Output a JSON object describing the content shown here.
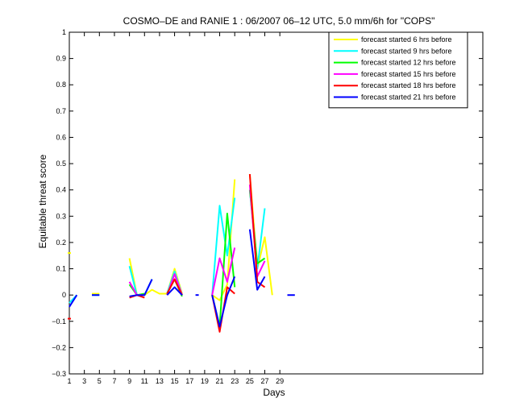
{
  "chart_data": {
    "type": "line",
    "title": "COSMO–DE and RANIE 1 : 06/2007 06–12 UTC, 5.0 mm/6h for \"COPS\"",
    "xlabel": "Days",
    "ylabel": "Equitable threat score",
    "xlim": [
      1,
      56
    ],
    "ylim": [
      -0.3,
      1
    ],
    "xticks": [
      "1",
      "3",
      "5",
      "7",
      "9",
      "11",
      "13",
      "15",
      "17",
      "19",
      "21",
      "23",
      "25",
      "27",
      "29"
    ],
    "yticks": [
      "−0.3",
      "−0.2",
      "−0.1",
      "0",
      "0.1",
      "0.2",
      "0.3",
      "0.4",
      "0.5",
      "0.6",
      "0.7",
      "0.8",
      "0.9",
      "1"
    ],
    "grid": false,
    "legend_position": "top-right",
    "series": [
      {
        "name": "forecast started 6 hrs before",
        "color": "#ffff00",
        "x": [
          1,
          2,
          3,
          4,
          5,
          6,
          7,
          8,
          9,
          10,
          11,
          12,
          13,
          14,
          15,
          16,
          17,
          18,
          19,
          20,
          21,
          22,
          23,
          24,
          25,
          26,
          27,
          28,
          29,
          30,
          31
        ],
        "y": [
          0.16,
          null,
          null,
          0.005,
          0.005,
          null,
          null,
          null,
          0.14,
          0.0,
          0.0,
          0.02,
          0.005,
          0.005,
          0.1,
          0.005,
          null,
          null,
          null,
          0.0,
          -0.02,
          0.04,
          0.44,
          null,
          0.46,
          0.1,
          0.22,
          0.0,
          null,
          null,
          null
        ]
      },
      {
        "name": "forecast started 9 hrs before",
        "color": "#00ffff",
        "x": [
          1,
          2,
          3,
          4,
          5,
          6,
          7,
          8,
          9,
          10,
          11,
          12,
          13,
          14,
          15,
          16,
          17,
          18,
          19,
          20,
          21,
          22,
          23,
          24,
          25,
          26,
          27,
          28,
          29,
          30,
          31
        ],
        "y": [
          -0.03,
          0.0,
          null,
          0.0,
          0.0,
          null,
          null,
          null,
          0.11,
          0.0,
          0.0,
          0.06,
          null,
          0.005,
          0.09,
          0.0,
          null,
          null,
          null,
          0.0,
          0.34,
          0.15,
          0.37,
          null,
          0.4,
          0.1,
          0.33,
          null,
          null,
          null,
          null
        ]
      },
      {
        "name": "forecast started 12 hrs before",
        "color": "#00ff00",
        "x": [
          1,
          2,
          3,
          4,
          5,
          6,
          7,
          8,
          9,
          10,
          11,
          12,
          13,
          14,
          15,
          16,
          17,
          18,
          19,
          20,
          21,
          22,
          23,
          24,
          25,
          26,
          27,
          28,
          29,
          30,
          31
        ],
        "y": [
          null,
          null,
          null,
          null,
          null,
          null,
          null,
          null,
          0.04,
          0.0,
          0.005,
          null,
          null,
          0.005,
          0.06,
          -0.005,
          null,
          null,
          null,
          0.0,
          -0.12,
          0.31,
          0.03,
          null,
          0.4,
          0.12,
          0.14,
          null,
          null,
          null,
          null
        ]
      },
      {
        "name": "forecast started 15 hrs before",
        "color": "#ff00ff",
        "x": [
          1,
          2,
          3,
          4,
          5,
          6,
          7,
          8,
          9,
          10,
          11,
          12,
          13,
          14,
          15,
          16,
          17,
          18,
          19,
          20,
          21,
          22,
          23,
          24,
          25,
          26,
          27,
          28,
          29,
          30,
          31
        ],
        "y": [
          null,
          null,
          null,
          null,
          null,
          null,
          null,
          null,
          0.05,
          0.0,
          0.0,
          null,
          null,
          0.0,
          0.08,
          0.0,
          null,
          null,
          null,
          0.0,
          0.14,
          0.05,
          0.18,
          null,
          0.42,
          0.07,
          0.13,
          null,
          null,
          null,
          null
        ]
      },
      {
        "name": "forecast started 18 hrs before",
        "color": "#ff0000",
        "x": [
          1,
          2,
          3,
          4,
          5,
          6,
          7,
          8,
          9,
          10,
          11,
          12,
          13,
          14,
          15,
          16,
          17,
          18,
          19,
          20,
          21,
          22,
          23,
          24,
          25,
          26,
          27,
          28,
          29,
          30,
          31
        ],
        "y": [
          -0.09,
          null,
          null,
          null,
          null,
          null,
          null,
          null,
          -0.01,
          0.0,
          -0.01,
          null,
          null,
          0.005,
          0.06,
          0.0,
          null,
          null,
          null,
          0.0,
          -0.14,
          0.03,
          0.005,
          null,
          0.46,
          0.05,
          0.03,
          null,
          null,
          null,
          null
        ]
      },
      {
        "name": "forecast started 21 hrs before",
        "color": "#0000ff",
        "x": [
          1,
          2,
          3,
          4,
          5,
          6,
          7,
          8,
          9,
          10,
          11,
          12,
          13,
          14,
          15,
          16,
          17,
          18,
          19,
          20,
          21,
          22,
          23,
          24,
          25,
          26,
          27,
          28,
          29,
          30,
          31
        ],
        "y": [
          -0.045,
          0.0,
          null,
          0.0,
          0.0,
          null,
          null,
          null,
          -0.005,
          0.0,
          0.0,
          0.06,
          null,
          0.0,
          0.03,
          0.0,
          null,
          0.0,
          null,
          0.0,
          -0.12,
          0.0,
          0.07,
          null,
          0.25,
          0.02,
          0.07,
          null,
          null,
          0.0,
          0.0
        ]
      }
    ]
  }
}
